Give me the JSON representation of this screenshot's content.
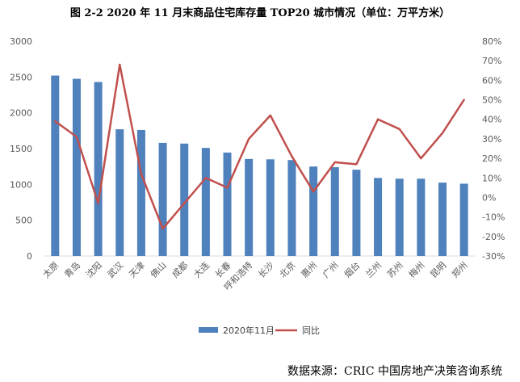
{
  "chart_data": {
    "type": "bar",
    "title": "图 2-2  2020 年 11 月末商品住宅库存量 TOP20 城市情况（单位：万平方米）",
    "categories": [
      "太原",
      "青岛",
      "沈阳",
      "武汉",
      "天津",
      "佛山",
      "成都",
      "大连",
      "长春",
      "呼和浩特",
      "长沙",
      "北京",
      "惠州",
      "广州",
      "烟台",
      "兰州",
      "苏州",
      "梅州",
      "昆明",
      "郑州"
    ],
    "series": [
      {
        "name": "2020年11月",
        "type": "bar",
        "axis": "left",
        "color": "#4F81BD",
        "values": [
          2520,
          2475,
          2430,
          1770,
          1760,
          1580,
          1570,
          1510,
          1445,
          1355,
          1350,
          1340,
          1250,
          1240,
          1205,
          1090,
          1080,
          1080,
          1025,
          1010
        ]
      },
      {
        "name": "同比",
        "type": "line",
        "axis": "right",
        "color": "#C0504D",
        "values": [
          39,
          31,
          -3,
          68,
          12,
          -16,
          -3,
          10,
          5,
          30,
          42,
          21,
          3,
          18,
          17,
          40,
          35,
          20,
          33,
          50
        ]
      }
    ],
    "ylim_left": [
      0,
      3000
    ],
    "yticks_left": [
      "0",
      "500",
      "1000",
      "1500",
      "2000",
      "2500",
      "3000"
    ],
    "ylim_right": [
      -30,
      80
    ],
    "yticks_right": [
      "-30%",
      "-20%",
      "-10%",
      "0%",
      "10%",
      "20%",
      "30%",
      "40%",
      "50%",
      "60%",
      "70%",
      "80%"
    ],
    "legend": "bottom",
    "grid": false
  },
  "source": "数据来源：CRIC 中国房地产决策咨询系统"
}
